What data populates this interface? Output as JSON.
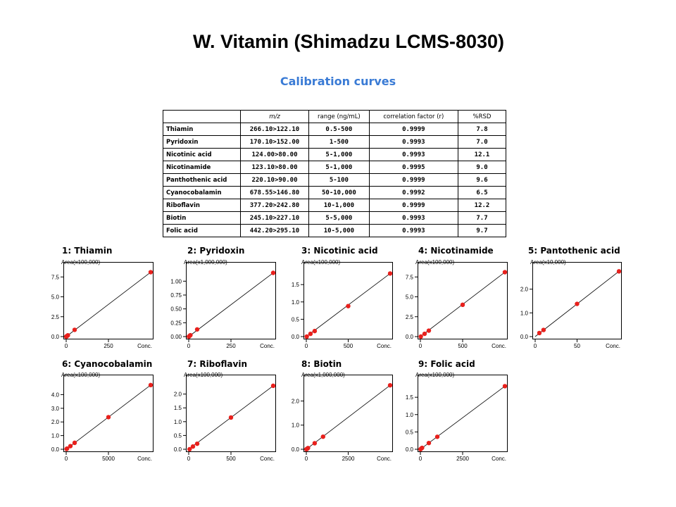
{
  "title": "W. Vitamin (Shimadzu LCMS-8030)",
  "subtitle": "Calibration curves",
  "table": {
    "headers": [
      "",
      "m/z",
      "range (ng/mL)",
      "correlation factor (r)",
      "%RSD"
    ],
    "rows": [
      [
        "Thiamin",
        "266.10>122.10",
        "0.5-500",
        "0.9999",
        "7.8"
      ],
      [
        "Pyridoxin",
        "170.10>152.00",
        "1-500",
        "0.9993",
        "7.0"
      ],
      [
        "Nicotinic acid",
        "124.00>80.00",
        "5-1,000",
        "0.9993",
        "12.1"
      ],
      [
        "Nicotinamide",
        "123.10>80.00",
        "5-1,000",
        "0.9995",
        "9.0"
      ],
      [
        "Panthothenic acid",
        "220.10>90.00",
        "5-100",
        "0.9999",
        "9.6"
      ],
      [
        "Cyanocobalamin",
        "678.55>146.80",
        "50-10,000",
        "0.9992",
        "6.5"
      ],
      [
        "Riboflavin",
        "377.20>242.80",
        "10-1,000",
        "0.9999",
        "12.2"
      ],
      [
        "Biotin",
        "245.10>227.10",
        "5-5,000",
        "0.9993",
        "7.7"
      ],
      [
        "Folic acid",
        "442.20>295.10",
        "10-5,000",
        "0.9993",
        "9.7"
      ]
    ]
  },
  "chart_data": [
    {
      "type": "line",
      "label": "1: Thiamin",
      "ylabel_text": "Area(x100,000)",
      "xlabel_text": "Conc.",
      "xlim": [
        0,
        500
      ],
      "ylim": [
        0,
        8.5
      ],
      "x_ticks": [
        "0",
        "250"
      ],
      "y_ticks": [
        "0.0",
        "2.5",
        "5.0",
        "7.5"
      ],
      "y_tick_values": [
        0,
        2.5,
        5,
        7.5
      ],
      "x_tick_values": [
        0,
        250
      ],
      "points": [
        [
          0.5,
          0.0
        ],
        [
          1,
          0.01
        ],
        [
          5,
          0.08
        ],
        [
          10,
          0.16
        ],
        [
          50,
          0.85
        ],
        [
          500,
          8.1
        ]
      ],
      "fit": [
        [
          0,
          0
        ],
        [
          500,
          8.1
        ]
      ]
    },
    {
      "type": "line",
      "label": "2: Pyridoxin",
      "ylabel_text": "Area(x1,000,000)",
      "xlabel_text": "Conc.",
      "xlim": [
        0,
        500
      ],
      "ylim": [
        0,
        1.22
      ],
      "x_ticks": [
        "0",
        "250"
      ],
      "y_ticks": [
        "0.00",
        "0.25",
        "0.50",
        "0.75",
        "1.00"
      ],
      "y_tick_values": [
        0,
        0.25,
        0.5,
        0.75,
        1.0
      ],
      "x_tick_values": [
        0,
        250
      ],
      "points": [
        [
          1,
          0.0
        ],
        [
          5,
          0.012
        ],
        [
          10,
          0.025
        ],
        [
          50,
          0.13
        ],
        [
          500,
          1.15
        ]
      ],
      "fit": [
        [
          0,
          0
        ],
        [
          500,
          1.15
        ]
      ]
    },
    {
      "type": "line",
      "label": "3: Nicotinic acid",
      "ylabel_text": "Area(x100,000)",
      "xlabel_text": "Conc.",
      "xlim": [
        0,
        1000
      ],
      "ylim": [
        0,
        1.95
      ],
      "x_ticks": [
        "0",
        "500"
      ],
      "y_ticks": [
        "0.0",
        "0.5",
        "1.0",
        "1.5"
      ],
      "y_tick_values": [
        0,
        0.5,
        1.0,
        1.5
      ],
      "x_tick_values": [
        0,
        500
      ],
      "points": [
        [
          5,
          0.0
        ],
        [
          50,
          0.08
        ],
        [
          100,
          0.16
        ],
        [
          500,
          0.88
        ],
        [
          1000,
          1.82
        ]
      ],
      "fit": [
        [
          0,
          0
        ],
        [
          1000,
          1.82
        ]
      ]
    },
    {
      "type": "line",
      "label": "4: Nicotinamide",
      "ylabel_text": "Area(x100,000)",
      "xlabel_text": "Conc.",
      "xlim": [
        0,
        1000
      ],
      "ylim": [
        0,
        8.5
      ],
      "x_ticks": [
        "0",
        "500"
      ],
      "y_ticks": [
        "0.0",
        "2.5",
        "5.0",
        "7.5"
      ],
      "y_tick_values": [
        0,
        2.5,
        5,
        7.5
      ],
      "x_tick_values": [
        0,
        500
      ],
      "points": [
        [
          5,
          0.0
        ],
        [
          50,
          0.35
        ],
        [
          100,
          0.75
        ],
        [
          500,
          4.0
        ],
        [
          1000,
          8.1
        ]
      ],
      "fit": [
        [
          0,
          0
        ],
        [
          1000,
          8.1
        ]
      ]
    },
    {
      "type": "line",
      "label": "5: Pantothenic acid",
      "ylabel_text": "Area(x10,000)",
      "xlabel_text": "Conc.",
      "xlim": [
        0,
        100
      ],
      "ylim": [
        0,
        2.85
      ],
      "x_ticks": [
        "0",
        "50"
      ],
      "y_ticks": [
        "0.0",
        "1.0",
        "2.0"
      ],
      "y_tick_values": [
        0,
        1,
        2
      ],
      "x_tick_values": [
        0,
        50
      ],
      "points": [
        [
          5,
          0.15
        ],
        [
          10,
          0.28
        ],
        [
          50,
          1.38
        ],
        [
          100,
          2.75
        ]
      ],
      "fit": [
        [
          0,
          0
        ],
        [
          100,
          2.75
        ]
      ]
    },
    {
      "type": "line",
      "label": "6: Cyanocobalamin",
      "ylabel_text": "Area(x100,000)",
      "xlabel_text": "Conc.",
      "xlim": [
        0,
        10000
      ],
      "ylim": [
        0,
        4.95
      ],
      "x_ticks": [
        "0",
        "5000"
      ],
      "y_ticks": [
        "0.0",
        "1.0",
        "2.0",
        "3.0",
        "4.0"
      ],
      "y_tick_values": [
        0,
        1,
        2,
        3,
        4
      ],
      "x_tick_values": [
        0,
        5000
      ],
      "points": [
        [
          50,
          0.02
        ],
        [
          100,
          0.05
        ],
        [
          500,
          0.23
        ],
        [
          1000,
          0.47
        ],
        [
          5000,
          2.35
        ],
        [
          10000,
          4.7
        ]
      ],
      "fit": [
        [
          0,
          0
        ],
        [
          10000,
          4.7
        ]
      ]
    },
    {
      "type": "line",
      "label": "7: Riboflavin",
      "ylabel_text": "Area(x100,000)",
      "xlabel_text": "Conc.",
      "xlim": [
        0,
        1000
      ],
      "ylim": [
        0,
        2.45
      ],
      "x_ticks": [
        "0",
        "500"
      ],
      "y_ticks": [
        "0.0",
        "0.5",
        "1.0",
        "1.5",
        "2.0"
      ],
      "y_tick_values": [
        0,
        0.5,
        1.0,
        1.5,
        2.0
      ],
      "x_tick_values": [
        0,
        500
      ],
      "points": [
        [
          10,
          0.0
        ],
        [
          50,
          0.1
        ],
        [
          100,
          0.2
        ],
        [
          500,
          1.15
        ],
        [
          1000,
          2.3
        ]
      ],
      "fit": [
        [
          0,
          0
        ],
        [
          1000,
          2.3
        ]
      ]
    },
    {
      "type": "line",
      "label": "8: Biotin",
      "ylabel_text": "Area(x1,000,000)",
      "xlabel_text": "Conc.",
      "xlim": [
        0,
        5000
      ],
      "ylim": [
        0,
        2.8
      ],
      "x_ticks": [
        "0",
        "2500"
      ],
      "y_ticks": [
        "0.0",
        "1.0",
        "2.0"
      ],
      "y_tick_values": [
        0,
        1,
        2
      ],
      "x_tick_values": [
        0,
        2500
      ],
      "points": [
        [
          5,
          0.0
        ],
        [
          50,
          0.02
        ],
        [
          100,
          0.05
        ],
        [
          500,
          0.25
        ],
        [
          1000,
          0.52
        ],
        [
          5000,
          2.65
        ]
      ],
      "fit": [
        [
          0,
          0
        ],
        [
          5000,
          2.65
        ]
      ]
    },
    {
      "type": "line",
      "label": "9: Folic acid",
      "ylabel_text": "Area(x100,000)",
      "xlabel_text": "Conc.",
      "xlim": [
        0,
        5000
      ],
      "ylim": [
        0,
        1.95
      ],
      "x_ticks": [
        "0",
        "2500"
      ],
      "y_ticks": [
        "0.0",
        "0.5",
        "1.0",
        "1.5"
      ],
      "y_tick_values": [
        0,
        0.5,
        1.0,
        1.5
      ],
      "x_tick_values": [
        0,
        2500
      ],
      "points": [
        [
          10,
          0.0
        ],
        [
          50,
          0.02
        ],
        [
          100,
          0.04
        ],
        [
          500,
          0.18
        ],
        [
          1000,
          0.36
        ],
        [
          5000,
          1.82
        ]
      ],
      "fit": [
        [
          0,
          0
        ],
        [
          5000,
          1.82
        ]
      ]
    }
  ],
  "colors": {
    "point": "#e8201c",
    "subtitle": "#3a7bd5"
  }
}
